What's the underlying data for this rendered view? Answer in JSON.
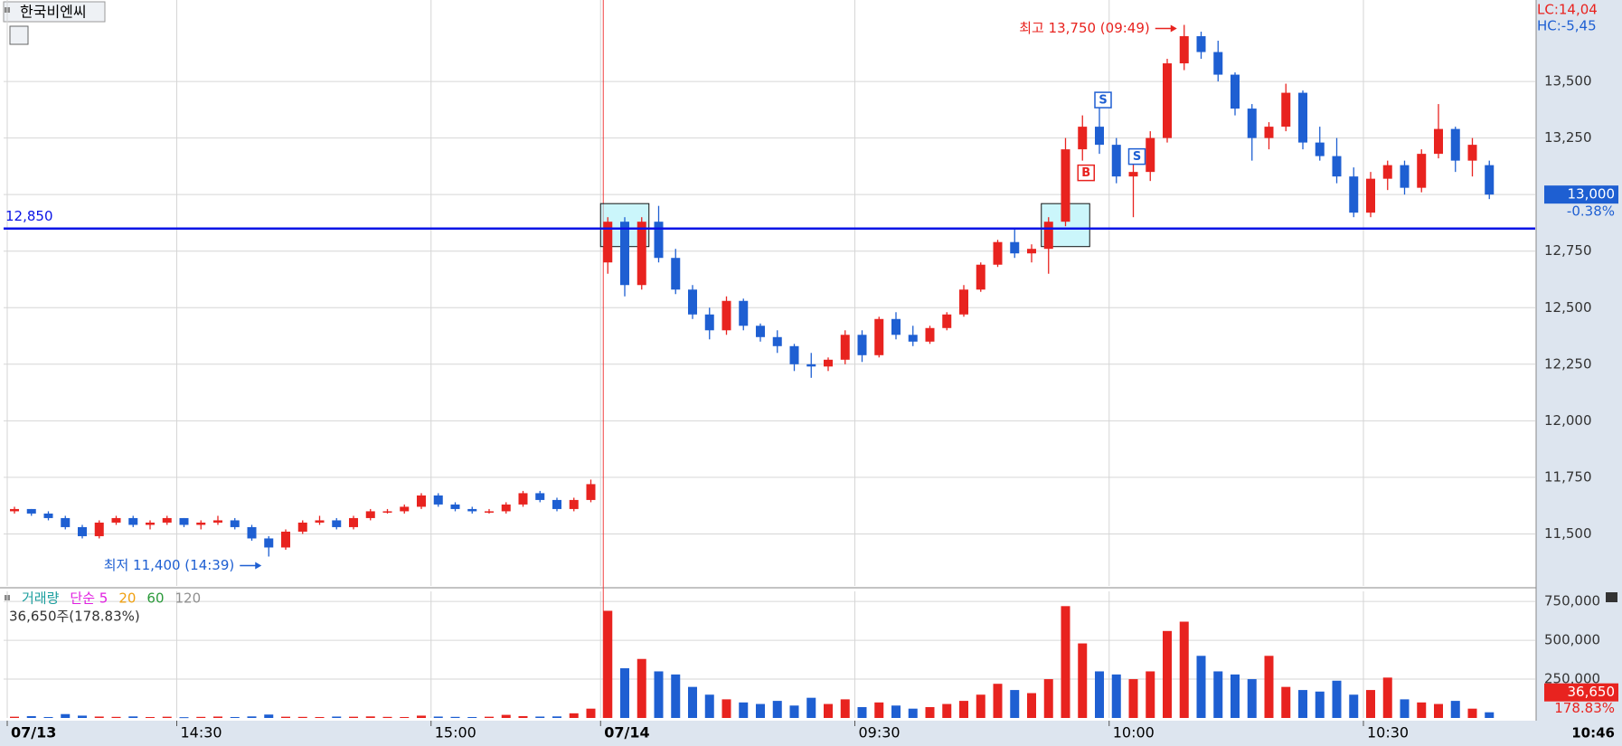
{
  "chart_data": {
    "type": "candlestick",
    "title": "한국비엔씨",
    "categories": [
      "07/13",
      null,
      null,
      null,
      null,
      null,
      null,
      null,
      null,
      null,
      "14:30",
      null,
      null,
      null,
      null,
      null,
      null,
      null,
      null,
      null,
      null,
      null,
      null,
      null,
      null,
      "15:00",
      null,
      null,
      null,
      null,
      null,
      null,
      null,
      null,
      null,
      "07/14",
      null,
      null,
      null,
      null,
      null,
      null,
      null,
      null,
      null,
      null,
      null,
      null,
      null,
      null,
      "09:30",
      null,
      null,
      null,
      null,
      null,
      null,
      null,
      null,
      null,
      null,
      null,
      null,
      null,
      null,
      "10:00",
      null,
      null,
      null,
      null,
      null,
      null,
      null,
      null,
      null,
      null,
      null,
      null,
      null,
      null,
      "10:30",
      null,
      null,
      null,
      null,
      null,
      null,
      null
    ],
    "ohlc": [
      [
        11600,
        11620,
        11590,
        11610
      ],
      [
        11610,
        11610,
        11580,
        11590
      ],
      [
        11590,
        11600,
        11560,
        11570
      ],
      [
        11570,
        11580,
        11520,
        11530
      ],
      [
        11530,
        11540,
        11480,
        11490
      ],
      [
        11490,
        11560,
        11480,
        11550
      ],
      [
        11550,
        11580,
        11540,
        11570
      ],
      [
        11570,
        11580,
        11530,
        11540
      ],
      [
        11540,
        11560,
        11520,
        11550
      ],
      [
        11550,
        11580,
        11540,
        11570
      ],
      [
        11570,
        11570,
        11530,
        11540
      ],
      [
        11540,
        11560,
        11520,
        11550
      ],
      [
        11550,
        11580,
        11540,
        11560
      ],
      [
        11560,
        11570,
        11520,
        11530
      ],
      [
        11530,
        11540,
        11470,
        11480
      ],
      [
        11480,
        11490,
        11400,
        11440
      ],
      [
        11440,
        11520,
        11430,
        11510
      ],
      [
        11510,
        11560,
        11500,
        11550
      ],
      [
        11550,
        11580,
        11540,
        11560
      ],
      [
        11560,
        11570,
        11520,
        11530
      ],
      [
        11530,
        11580,
        11520,
        11570
      ],
      [
        11570,
        11610,
        11560,
        11600
      ],
      [
        11600,
        11610,
        11590,
        11600
      ],
      [
        11600,
        11630,
        11590,
        11620
      ],
      [
        11620,
        11680,
        11610,
        11670
      ],
      [
        11670,
        11680,
        11620,
        11630
      ],
      [
        11630,
        11640,
        11600,
        11610
      ],
      [
        11610,
        11620,
        11590,
        11600
      ],
      [
        11600,
        11610,
        11590,
        11600
      ],
      [
        11600,
        11640,
        11590,
        11630
      ],
      [
        11630,
        11690,
        11620,
        11680
      ],
      [
        11680,
        11690,
        11640,
        11650
      ],
      [
        11650,
        11660,
        11600,
        11610
      ],
      [
        11610,
        11660,
        11600,
        11650
      ],
      [
        11650,
        11740,
        11640,
        11720
      ],
      [
        12700,
        12900,
        12650,
        12880
      ],
      [
        12880,
        12900,
        12550,
        12600
      ],
      [
        12600,
        12900,
        12580,
        12880
      ],
      [
        12880,
        12950,
        12700,
        12720
      ],
      [
        12720,
        12760,
        12560,
        12580
      ],
      [
        12580,
        12600,
        12450,
        12470
      ],
      [
        12470,
        12500,
        12360,
        12400
      ],
      [
        12400,
        12550,
        12380,
        12530
      ],
      [
        12530,
        12540,
        12400,
        12420
      ],
      [
        12420,
        12430,
        12350,
        12370
      ],
      [
        12370,
        12400,
        12300,
        12330
      ],
      [
        12330,
        12340,
        12220,
        12250
      ],
      [
        12250,
        12300,
        12190,
        12240
      ],
      [
        12240,
        12280,
        12220,
        12270
      ],
      [
        12270,
        12400,
        12250,
        12380
      ],
      [
        12380,
        12400,
        12260,
        12290
      ],
      [
        12290,
        12460,
        12280,
        12450
      ],
      [
        12450,
        12480,
        12360,
        12380
      ],
      [
        12380,
        12420,
        12330,
        12350
      ],
      [
        12350,
        12420,
        12340,
        12410
      ],
      [
        12410,
        12480,
        12400,
        12470
      ],
      [
        12470,
        12600,
        12460,
        12580
      ],
      [
        12580,
        12700,
        12570,
        12690
      ],
      [
        12690,
        12800,
        12680,
        12790
      ],
      [
        12790,
        12850,
        12720,
        12740
      ],
      [
        12740,
        12780,
        12700,
        12760
      ],
      [
        12760,
        12900,
        12650,
        12880
      ],
      [
        12880,
        13250,
        12860,
        13200
      ],
      [
        13200,
        13350,
        13150,
        13300
      ],
      [
        13300,
        13400,
        13180,
        13220
      ],
      [
        13220,
        13250,
        13050,
        13080
      ],
      [
        13080,
        13150,
        12900,
        13100
      ],
      [
        13100,
        13280,
        13060,
        13250
      ],
      [
        13250,
        13600,
        13230,
        13580
      ],
      [
        13580,
        13750,
        13550,
        13700
      ],
      [
        13700,
        13720,
        13600,
        13630
      ],
      [
        13630,
        13680,
        13500,
        13530
      ],
      [
        13530,
        13540,
        13350,
        13380
      ],
      [
        13380,
        13400,
        13150,
        13250
      ],
      [
        13250,
        13320,
        13200,
        13300
      ],
      [
        13300,
        13490,
        13280,
        13450
      ],
      [
        13450,
        13460,
        13200,
        13230
      ],
      [
        13230,
        13300,
        13150,
        13170
      ],
      [
        13170,
        13250,
        13050,
        13080
      ],
      [
        13080,
        13120,
        12900,
        12920
      ],
      [
        12920,
        13100,
        12900,
        13070
      ],
      [
        13070,
        13150,
        13020,
        13130
      ],
      [
        13130,
        13150,
        13000,
        13030
      ],
      [
        13030,
        13200,
        13010,
        13180
      ],
      [
        13180,
        13400,
        13160,
        13290
      ],
      [
        13290,
        13300,
        13100,
        13150
      ],
      [
        13150,
        13250,
        13080,
        13220
      ],
      [
        13130,
        13150,
        12980,
        13000
      ]
    ],
    "up_color": "#e8231f",
    "down_color": "#1e5fd2",
    "ylim": [
      11270,
      13860
    ],
    "yticks": [
      {
        "value": 11500,
        "label": "11,500"
      },
      {
        "value": 11750,
        "label": "11,750"
      },
      {
        "value": 12000,
        "label": "12,000"
      },
      {
        "value": 12250,
        "label": "12,250"
      },
      {
        "value": 12500,
        "label": "12,500"
      },
      {
        "value": 12750,
        "label": "12,750"
      },
      {
        "value": 13000,
        "label": "13,000"
      },
      {
        "value": 13250,
        "label": "13,250"
      },
      {
        "value": 13500,
        "label": "13,500"
      }
    ],
    "grid": true,
    "reference_line": {
      "value": 12850,
      "label": "12,850",
      "color": "#0a14e6"
    },
    "annotations": {
      "high": "최고 13,750 (09:49)",
      "low": "최저 11,400 (14:39)"
    },
    "signals": [
      "S",
      "S",
      "B"
    ],
    "last_price": {
      "value": 13000,
      "label": "13,000",
      "change": "-0.38%"
    },
    "corner": {
      "lc": "LC:14,04",
      "hc": "HC:-5,45"
    },
    "x_last_label": "10:46",
    "volume": {
      "values": [
        8000,
        12000,
        6000,
        25000,
        15000,
        9000,
        7000,
        10000,
        6000,
        8000,
        5000,
        7000,
        9000,
        6000,
        10000,
        22000,
        8000,
        7000,
        6000,
        9000,
        8000,
        10000,
        7000,
        6000,
        15000,
        9000,
        7000,
        6000,
        8000,
        20000,
        12000,
        9000,
        10000,
        30000,
        60000,
        690000,
        320000,
        380000,
        300000,
        280000,
        200000,
        150000,
        120000,
        100000,
        90000,
        110000,
        80000,
        130000,
        90000,
        120000,
        70000,
        100000,
        80000,
        60000,
        70000,
        90000,
        110000,
        150000,
        220000,
        180000,
        160000,
        250000,
        720000,
        480000,
        300000,
        280000,
        250000,
        300000,
        560000,
        620000,
        400000,
        300000,
        280000,
        250000,
        400000,
        200000,
        180000,
        170000,
        240000,
        150000,
        180000,
        260000,
        120000,
        100000,
        90000,
        110000,
        60000,
        36650
      ],
      "ylim": [
        0,
        815000
      ],
      "yticks": [
        {
          "value": 250000,
          "label": "250,000"
        },
        {
          "value": 500000,
          "label": "500,000"
        },
        {
          "value": 750000,
          "label": "750,000"
        }
      ],
      "legend": [
        {
          "name": "거래량",
          "color": "#1b9e9e"
        },
        {
          "name": "단순 5",
          "color": "#e01ee0"
        },
        {
          "name": "20",
          "color": "#f0a010"
        },
        {
          "name": "60",
          "color": "#2a9a3a"
        },
        {
          "name": "120",
          "color": "#909090"
        }
      ],
      "summary": "36,650주(178.83%)",
      "last": {
        "value": 36650,
        "label": "36,650",
        "ratio": "178.83%"
      }
    }
  }
}
